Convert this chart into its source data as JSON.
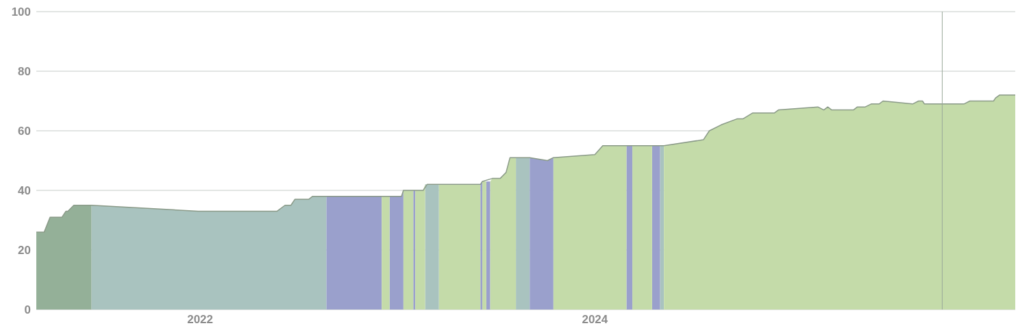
{
  "chart_data": {
    "type": "area",
    "xlim": [
      2021.17,
      2026.13
    ],
    "xticks": [
      2022,
      2024
    ],
    "ylim": [
      0,
      100
    ],
    "yticks": [
      0,
      20,
      40,
      60,
      80,
      100
    ],
    "grid": "y",
    "ref_lines": [
      {
        "axis": "x",
        "value": 2025.76,
        "color": "#9aa89a"
      }
    ],
    "series": [
      {
        "type": "line",
        "color": "#8a9a88",
        "x": [
          2021.17,
          2021.21,
          2021.24,
          2021.3,
          2021.32,
          2021.33,
          2021.36,
          2021.45,
          2021.99,
          2022.39,
          2022.43,
          2022.46,
          2022.48,
          2022.55,
          2022.57,
          2023.02,
          2023.03,
          2023.13,
          2023.15,
          2023.42,
          2023.43,
          2023.48,
          2023.52,
          2023.55,
          2023.57,
          2023.67,
          2023.76,
          2023.79,
          2024.0,
          2024.04,
          2024.35,
          2024.55,
          2024.58,
          2024.64,
          2024.72,
          2024.75,
          2024.8,
          2024.91,
          2024.93,
          2025.13,
          2025.16,
          2025.18,
          2025.2,
          2025.31,
          2025.33,
          2025.37,
          2025.4,
          2025.44,
          2025.46,
          2025.61,
          2025.64,
          2025.66,
          2025.67,
          2025.87,
          2025.9,
          2026.02,
          2026.03,
          2026.05,
          2026.13
        ],
        "values": [
          26,
          26,
          31,
          31,
          33,
          33,
          35,
          35,
          33,
          33,
          35,
          35,
          37,
          37,
          38,
          38,
          40,
          40,
          42,
          42,
          43,
          44,
          44,
          46,
          51,
          51,
          50,
          51,
          52,
          55,
          55,
          57,
          60,
          62,
          64,
          64,
          66,
          66,
          67,
          68,
          67,
          68,
          67,
          67,
          68,
          68,
          69,
          69,
          70,
          69,
          70,
          70,
          69,
          69,
          70,
          70,
          71,
          72,
          72
        ]
      },
      {
        "color": "#94b098",
        "x": [
          2021.17,
          2021.21,
          2021.24,
          2021.3,
          2021.32,
          2021.33,
          2021.36,
          2021.45
        ],
        "values": [
          26,
          26,
          31,
          31,
          33,
          33,
          35,
          35
        ]
      },
      {
        "color": "#a9c3bf",
        "x": [
          2021.45,
          2021.99,
          2022.39,
          2022.43,
          2022.46,
          2022.48,
          2022.55,
          2022.57,
          2022.64,
          2022.9,
          2023.14,
          2023.15,
          2023.21,
          2023.4,
          2023.6,
          2023.67,
          2024.0,
          2024.33,
          2024.35
        ],
        "values": [
          35,
          33,
          33,
          35,
          35,
          37,
          37,
          38,
          38,
          null,
          42,
          42,
          42,
          null,
          51,
          51,
          null,
          55,
          55
        ]
      },
      {
        "color": "#9aa0cc",
        "x": [
          2022.64,
          2022.92,
          2022.94,
          2022.96,
          2023.02,
          2023.03,
          2023.05,
          2023.08,
          2023.09,
          2023.3,
          2023.42,
          2023.43,
          2023.44,
          2023.45,
          2023.47,
          2023.55,
          2023.67,
          2023.76,
          2023.79,
          2024.0,
          2024.16,
          2024.19,
          2024.25,
          2024.29,
          2024.33
        ],
        "values": [
          38,
          38,
          null,
          38,
          38,
          40,
          null,
          40,
          40,
          null,
          42,
          43,
          null,
          43,
          43,
          null,
          51,
          50,
          51,
          null,
          55,
          55,
          null,
          55,
          55
        ]
      },
      {
        "color": "#c4dba9",
        "x": [
          2022.92,
          2022.96,
          2023.0,
          2023.03,
          2023.08,
          2023.085,
          2023.09,
          2023.13,
          2023.14,
          2023.18,
          2023.21,
          2023.42,
          2023.425,
          2023.43,
          2023.45,
          2023.46,
          2023.47,
          2023.48,
          2023.52,
          2023.55,
          2023.57,
          2023.6,
          2023.7,
          2023.79,
          2024.0,
          2024.04,
          2024.16,
          2024.175,
          2024.19,
          2024.29,
          2024.32,
          2024.35,
          2024.55,
          2024.58,
          2024.64,
          2024.72,
          2024.75,
          2024.8,
          2024.91,
          2024.93,
          2025.13,
          2025.16,
          2025.18,
          2025.2,
          2025.31,
          2025.33,
          2025.37,
          2025.4,
          2025.44,
          2025.46,
          2025.61,
          2025.64,
          2025.66,
          2025.67,
          2025.87,
          2025.9,
          2026.02,
          2026.03,
          2026.05,
          2026.13
        ],
        "values": [
          38,
          38,
          null,
          40,
          40,
          null,
          40,
          40,
          42,
          null,
          42,
          42,
          null,
          43,
          43,
          null,
          43,
          44,
          44,
          46,
          51,
          51,
          null,
          51,
          52,
          55,
          55,
          null,
          55,
          55,
          null,
          55,
          57,
          60,
          62,
          64,
          64,
          66,
          66,
          67,
          68,
          67,
          68,
          67,
          67,
          68,
          68,
          69,
          69,
          70,
          69,
          70,
          70,
          69,
          69,
          70,
          70,
          71,
          72,
          72
        ]
      }
    ]
  }
}
